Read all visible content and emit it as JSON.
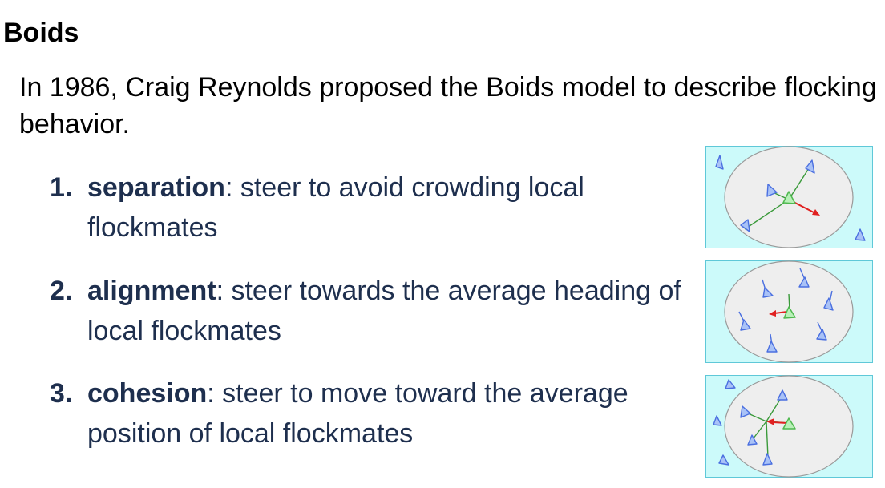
{
  "slide": {
    "title": "Boids",
    "intro": "In 1986, Craig Reynolds proposed the Boids model to describe flocking behavior."
  },
  "rules": [
    {
      "number": "1.",
      "term": "separation",
      "text": ": steer to avoid crowding local flockmates"
    },
    {
      "number": "2.",
      "term": "alignment",
      "text": ": steer towards the average heading of local flockmates"
    },
    {
      "number": "3.",
      "term": "cohesion",
      "text": ": steer to move toward the average position of local flockmates"
    }
  ],
  "colors": {
    "panel_bg": "#ccfafa",
    "panel_border": "#5fc8d8",
    "neighborhood_fill": "#eeeeee",
    "neighborhood_stroke": "#9a9a9a",
    "neighbor_boid": "#4a6fe0",
    "focal_boid": "#4fb84f",
    "steer_arrow": "#e02020",
    "link_line": "#3a9a3a",
    "rule_text": "#1e2f4e"
  }
}
